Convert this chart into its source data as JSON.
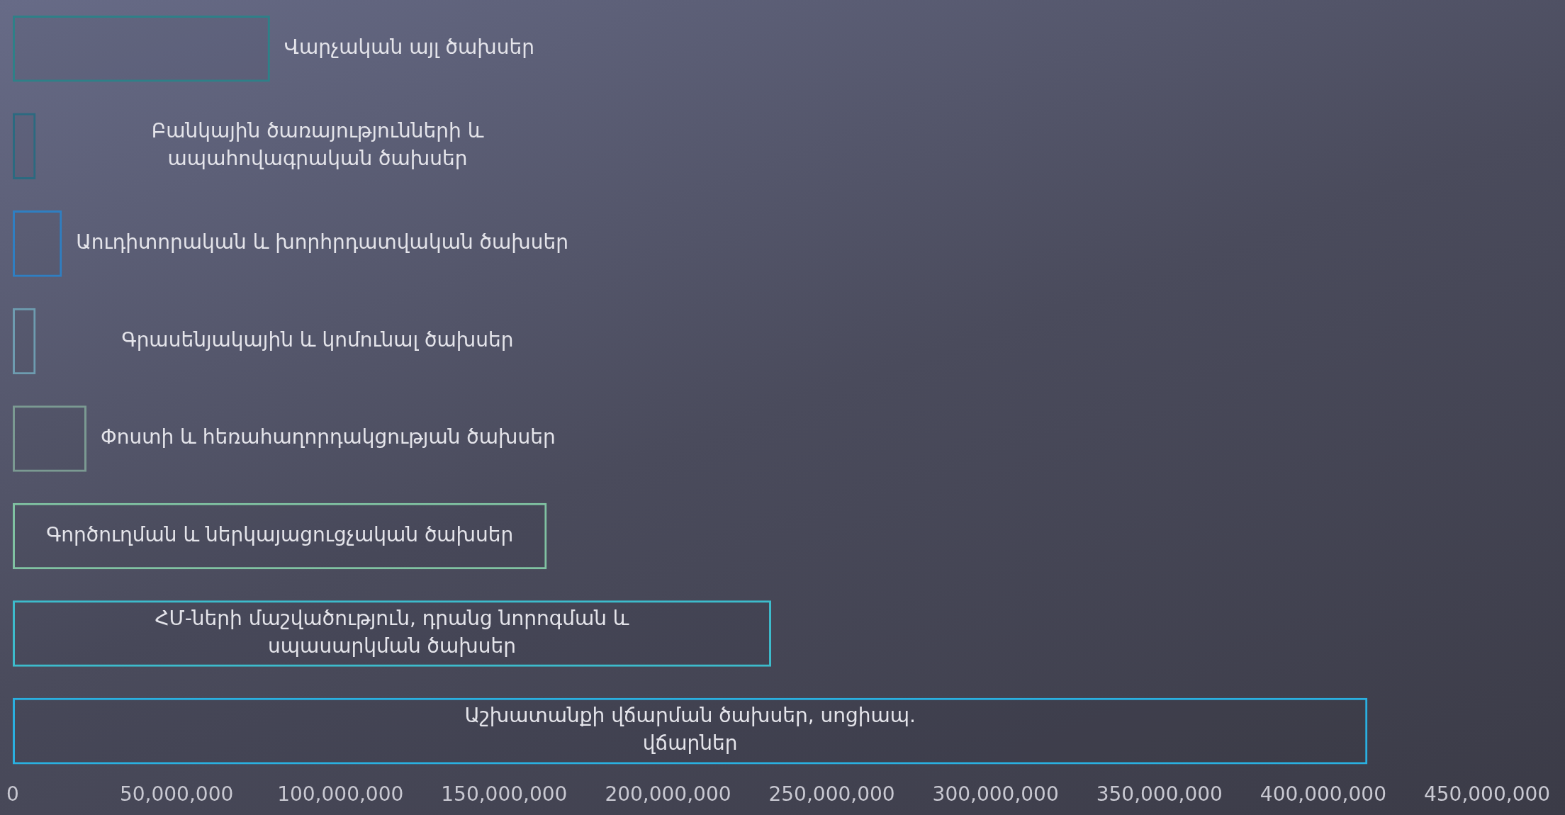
{
  "chart_data": {
    "type": "bar",
    "orientation": "horizontal",
    "categories": [
      "Վարչական այլ ծախսեր",
      "Բանկային ծառայությունների և ապահովագրական ծախսեր",
      "Աուդիտորական և խորհրդատվական ծախսեր",
      "Գրասենյակային և կոմունալ ծախսեր",
      "Փոստի և հեռահաղորդակցության ծախսեր",
      "Գործուղման և ներկայացուցչական ծախսեր",
      "ՀՄ-ների մաշվածություն, դրանց նորոգման և սպասարկման ծախսեր",
      "Աշխատանքի վճարման ծախսեր, սոցիապ. վճարներ"
    ],
    "values": [
      78500000,
      7000000,
      15000000,
      7000000,
      22500000,
      163000000,
      231500000,
      413500000
    ],
    "colors": [
      "#2e8088",
      "#2b6a80",
      "#2f7fc2",
      "#6e9cb0",
      "#7b9a92",
      "#80c2a2",
      "#3dbccc",
      "#2ab0e0"
    ],
    "xlim": [
      0,
      450000000
    ],
    "xticks": [
      0,
      {
        "value": 50000000,
        "label": "50,000,000"
      },
      {
        "value": 100000000,
        "label": "100,000,000"
      },
      {
        "value": 150000000,
        "label": "150,000,000"
      },
      {
        "value": 200000000,
        "label": "200,000,000"
      },
      {
        "value": 250000000,
        "label": "250,000,000"
      },
      {
        "value": 300000000,
        "label": "300,000,000"
      },
      {
        "value": 350000000,
        "label": "350,000,000"
      },
      {
        "value": 400000000,
        "label": "400,000,000"
      },
      {
        "value": 450000000,
        "label": "450,000,000"
      }
    ],
    "tick_labels": "x",
    "grid": false,
    "legend": false
  }
}
